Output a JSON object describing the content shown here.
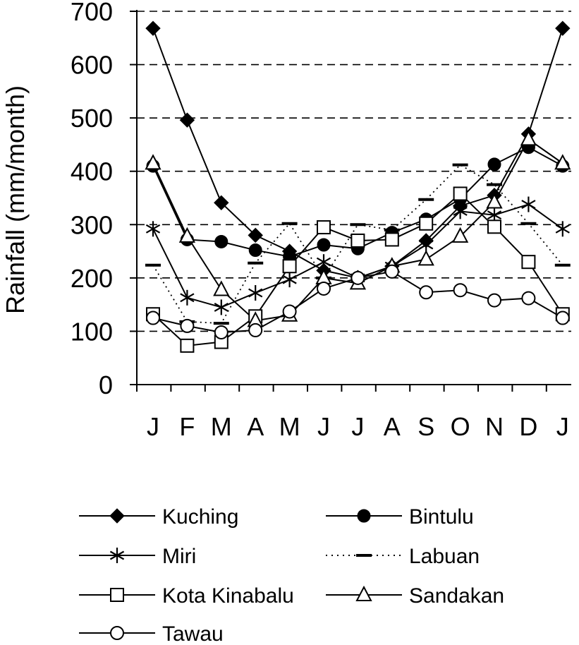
{
  "chart_data": {
    "type": "line",
    "title": "",
    "xlabel": "",
    "ylabel": "Rainfall (mm/month)",
    "ylim": [
      0,
      700
    ],
    "yticks": [
      0,
      100,
      200,
      300,
      400,
      500,
      600,
      700
    ],
    "grid": "horizontal dashed",
    "legend_position": "bottom",
    "categories": [
      "J",
      "F",
      "M",
      "A",
      "M",
      "J",
      "J",
      "A",
      "S",
      "O",
      "N",
      "D",
      "J"
    ],
    "series": [
      {
        "name": "Kuching",
        "marker": "filled-diamond",
        "line": "solid",
        "values": [
          668,
          496,
          341,
          280,
          250,
          214,
          200,
          222,
          270,
          335,
          355,
          470,
          668
        ]
      },
      {
        "name": "Bintulu",
        "marker": "filled-circle",
        "line": "solid",
        "values": [
          410,
          272,
          268,
          252,
          240,
          262,
          255,
          285,
          310,
          348,
          413,
          445,
          410
        ]
      },
      {
        "name": "Miri",
        "marker": "asterisk",
        "line": "solid",
        "values": [
          292,
          163,
          145,
          172,
          197,
          230,
          200,
          222,
          262,
          325,
          318,
          338,
          292
        ]
      },
      {
        "name": "Labuan",
        "marker": "dash",
        "line": "dotted",
        "values": [
          224,
          118,
          115,
          228,
          302,
          200,
          300,
          290,
          347,
          412,
          375,
          302,
          224
        ]
      },
      {
        "name": "Kota Kinabalu",
        "marker": "open-square",
        "line": "solid",
        "values": [
          132,
          73,
          80,
          128,
          222,
          295,
          270,
          272,
          302,
          358,
          296,
          230,
          132
        ]
      },
      {
        "name": "Sandakan",
        "marker": "open-triangle",
        "line": "solid",
        "values": [
          415,
          278,
          178,
          120,
          130,
          200,
          190,
          222,
          235,
          278,
          342,
          460,
          415
        ]
      },
      {
        "name": "Tawau",
        "marker": "open-circle",
        "line": "solid",
        "values": [
          125,
          110,
          98,
          102,
          137,
          180,
          200,
          212,
          173,
          177,
          158,
          162,
          125
        ]
      }
    ]
  }
}
